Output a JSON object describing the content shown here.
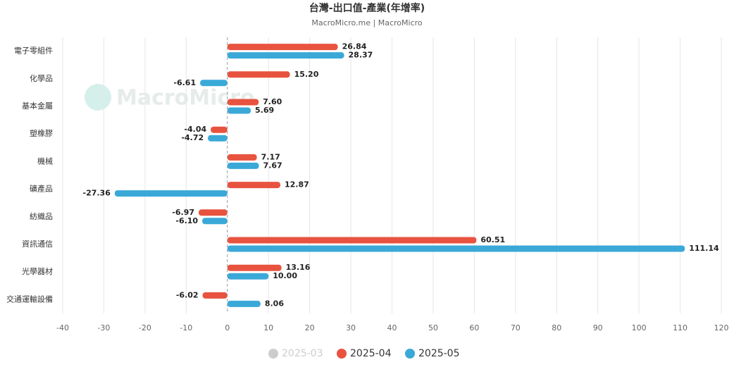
{
  "chart_data": {
    "type": "hbar",
    "title": "台灣-出口值-產業(年增率)",
    "subtitle": "MacroMicro.me | MacroMicro",
    "watermark": "MacroMicro",
    "categories": [
      "電子零組件",
      "化學品",
      "基本金屬",
      "塑橡膠",
      "機械",
      "礦產品",
      "紡織品",
      "資訊通信",
      "光學器材",
      "交通運輸設備"
    ],
    "series": [
      {
        "name": "2025-03",
        "color": "#cccccc",
        "visible": false,
        "values": [
          null,
          null,
          null,
          null,
          null,
          null,
          null,
          null,
          null,
          null
        ]
      },
      {
        "name": "2025-04",
        "color": "#e8533f",
        "visible": true,
        "values": [
          26.84,
          15.2,
          7.6,
          -4.04,
          7.17,
          12.87,
          -6.97,
          60.51,
          13.16,
          -6.02
        ],
        "value_labels": [
          "26.84",
          "15.20",
          "7.60",
          "-4.04",
          "7.17",
          "12.87",
          "-6.97",
          "60.51",
          "13.16",
          "-6.02"
        ]
      },
      {
        "name": "2025-05",
        "color": "#3aa9d8",
        "visible": true,
        "values": [
          28.37,
          -6.61,
          5.69,
          -4.72,
          7.67,
          -27.36,
          -6.1,
          111.14,
          10,
          8.06
        ],
        "value_labels": [
          "28.37",
          "-6.61",
          "5.69",
          "-4.72",
          "7.67",
          "-27.36",
          "-6.10",
          "111.14",
          "10.00",
          "8.06"
        ]
      }
    ],
    "xlim": [
      -40,
      120
    ],
    "xticks": [
      -40,
      -30,
      -20,
      -10,
      0,
      10,
      20,
      30,
      40,
      50,
      60,
      70,
      80,
      90,
      100,
      110,
      120
    ],
    "grid": true
  }
}
